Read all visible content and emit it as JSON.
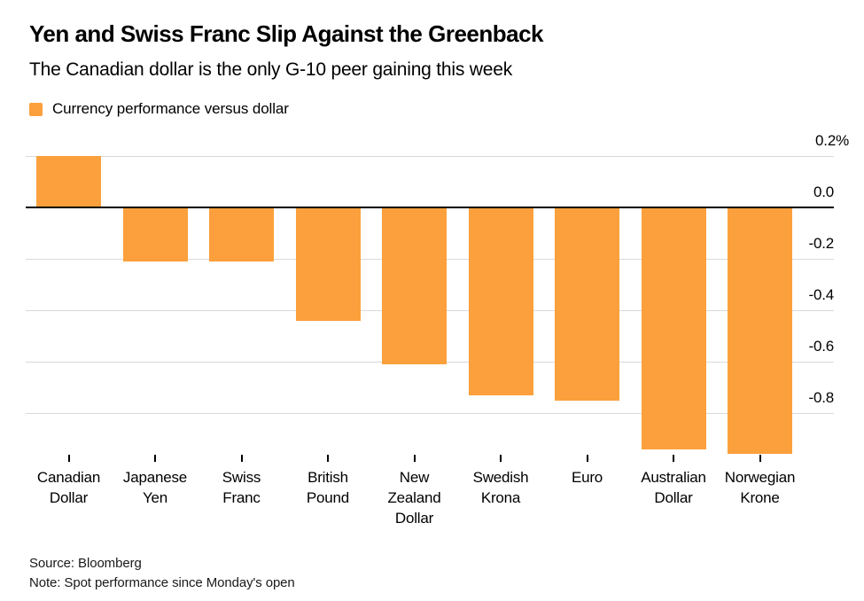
{
  "header": {
    "title": "Yen and Swiss Franc Slip Against the Greenback",
    "subtitle": "The Canadian dollar is the only G-10 peer gaining this week"
  },
  "legend": {
    "label": "Currency performance versus dollar",
    "swatch_color": "#FBA03C"
  },
  "chart_data": {
    "type": "bar",
    "title": "Yen and Swiss Franc Slip Against the Greenback",
    "subtitle": "The Canadian dollar is the only G-10 peer gaining this week",
    "legend_label": "Currency performance versus dollar",
    "legend_position": "top-left",
    "unit": "%",
    "categories": [
      "Canadian\nDollar",
      "Japanese\nYen",
      "Swiss\nFranc",
      "British\nPound",
      "New\nZealand\nDollar",
      "Swedish\nKrona",
      "Euro",
      "Australian\nDollar",
      "Norwegian\nKrone"
    ],
    "values": [
      0.2,
      -0.21,
      -0.21,
      -0.44,
      -0.61,
      -0.73,
      -0.75,
      -0.94,
      -0.96
    ],
    "bar_color": "#FBA03C",
    "grid": true,
    "gridline_color": "#D9D9D9",
    "zero_line_color": "#000000",
    "ylim": [
      -0.97,
      0.3
    ],
    "yticks": [
      {
        "value": 0.2,
        "label": "0.2%"
      },
      {
        "value": 0.0,
        "label": "0.0"
      },
      {
        "value": -0.2,
        "label": "-0.2"
      },
      {
        "value": -0.4,
        "label": "-0.4"
      },
      {
        "value": -0.6,
        "label": "-0.6"
      },
      {
        "value": -0.8,
        "label": "-0.8"
      }
    ]
  },
  "footer": {
    "source": "Source: Bloomberg",
    "note": "Note: Spot performance since Monday's open"
  }
}
